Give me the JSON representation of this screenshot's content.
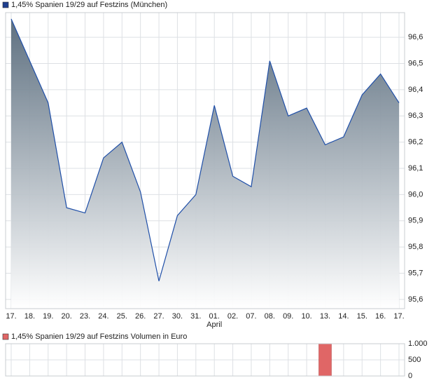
{
  "chart_data": [
    {
      "type": "area",
      "legend_label": "1,45% Spanien 19/29 auf Festzins (München)",
      "color": "#1f4fa8",
      "categories": [
        "17.",
        "18.",
        "19.",
        "20.",
        "23.",
        "24.",
        "25.",
        "26.",
        "27.",
        "30.",
        "31.",
        "01.",
        "02.",
        "07.",
        "08.",
        "09.",
        "10.",
        "13.",
        "14.",
        "15.",
        "16.",
        "17."
      ],
      "x_sublabels": [
        null,
        null,
        null,
        null,
        null,
        null,
        null,
        null,
        null,
        null,
        null,
        "April",
        null,
        null,
        null,
        null,
        null,
        null,
        null,
        null,
        null,
        null
      ],
      "values": [
        96.67,
        96.51,
        96.35,
        95.95,
        95.93,
        96.14,
        96.2,
        96.01,
        95.67,
        95.92,
        96.0,
        96.34,
        96.07,
        96.03,
        96.51,
        96.3,
        96.33,
        96.19,
        96.22,
        96.38,
        96.46,
        96.35
      ],
      "ylim": [
        95.565,
        96.694
      ],
      "yticks": [
        {
          "value": 95.6,
          "label": "95,6"
        },
        {
          "value": 95.7,
          "label": "95,7"
        },
        {
          "value": 95.8,
          "label": "95,8"
        },
        {
          "value": 95.9,
          "label": "95,9"
        },
        {
          "value": 96.0,
          "label": "96,0"
        },
        {
          "value": 96.1,
          "label": "96,1"
        },
        {
          "value": 96.2,
          "label": "96,2"
        },
        {
          "value": 96.3,
          "label": "96,3"
        },
        {
          "value": 96.4,
          "label": "96,4"
        },
        {
          "value": 96.5,
          "label": "96,5"
        },
        {
          "value": 96.6,
          "label": "96,6"
        }
      ],
      "grid": true
    },
    {
      "type": "bar",
      "legend_label": "1,45% Spanien 19/29 auf Festzins Volumen in Euro",
      "color": "#e06666",
      "values": [
        null,
        null,
        null,
        null,
        null,
        null,
        null,
        null,
        null,
        null,
        null,
        null,
        null,
        null,
        null,
        null,
        null,
        1000,
        null,
        null,
        null,
        null
      ],
      "ylim": [
        0,
        1000
      ],
      "yticks": [
        0,
        500,
        {
          "value": 1000,
          "label": "1.000"
        }
      ],
      "grid": true
    }
  ]
}
